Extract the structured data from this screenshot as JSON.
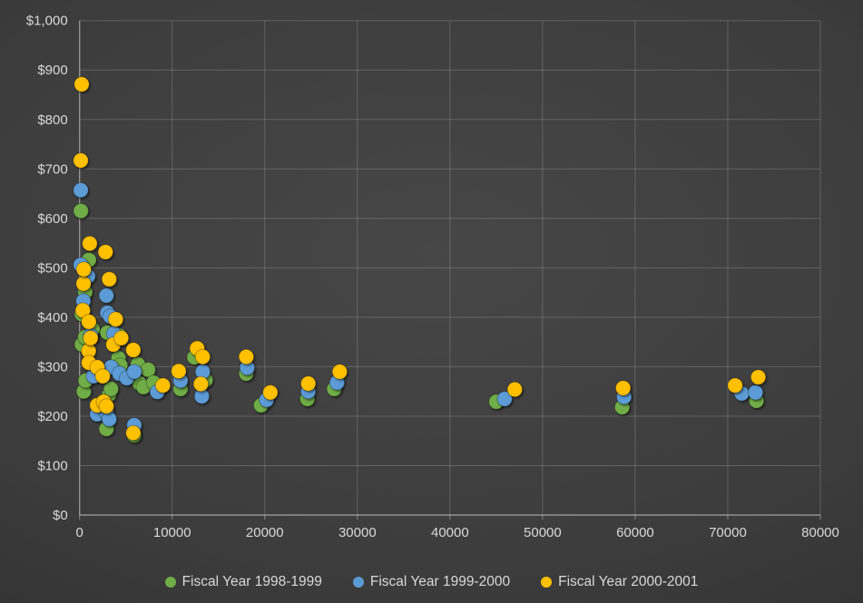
{
  "chart": {
    "y_axis_labels": [
      "$0",
      "$100",
      "$200",
      "$300",
      "$400",
      "$500",
      "$600",
      "$700",
      "$800",
      "$900",
      "$1,000"
    ],
    "x_axis_labels": [
      "0",
      "10000",
      "20000",
      "30000",
      "40000",
      "50000",
      "60000",
      "70000",
      "80000"
    ],
    "text_color": "#D9D9D9",
    "background_color": "#3C3C3C"
  },
  "chart_data": {
    "type": "scatter",
    "title": "",
    "xlabel": "",
    "ylabel": "",
    "xlim": [
      0,
      80000
    ],
    "ylim": [
      0,
      1000
    ],
    "x_ticks": [
      0,
      10000,
      20000,
      30000,
      40000,
      50000,
      60000,
      70000,
      80000
    ],
    "y_ticks": [
      0,
      100,
      200,
      300,
      400,
      500,
      600,
      700,
      800,
      900,
      1000
    ],
    "grid": true,
    "legend_position": "bottom",
    "series": [
      {
        "name": "Fiscal Year 1998-1999",
        "color": "#70AD47",
        "points": [
          [
            150,
            615
          ],
          [
            250,
            406
          ],
          [
            250,
            345
          ],
          [
            450,
            250
          ],
          [
            600,
            451
          ],
          [
            600,
            360
          ],
          [
            650,
            272
          ],
          [
            1000,
            516
          ],
          [
            1400,
            376
          ],
          [
            2900,
            174
          ],
          [
            3000,
            369
          ],
          [
            3200,
            244
          ],
          [
            3400,
            255
          ],
          [
            3900,
            358
          ],
          [
            4200,
            317
          ],
          [
            4300,
            363
          ],
          [
            4400,
            303
          ],
          [
            5900,
            161
          ],
          [
            6300,
            305
          ],
          [
            6500,
            266
          ],
          [
            6900,
            259
          ],
          [
            7400,
            294
          ],
          [
            8000,
            268
          ],
          [
            10900,
            255
          ],
          [
            12400,
            319
          ],
          [
            13600,
            273
          ],
          [
            18000,
            286
          ],
          [
            19600,
            222
          ],
          [
            24600,
            235
          ],
          [
            27500,
            255
          ],
          [
            45000,
            229
          ],
          [
            58600,
            218
          ],
          [
            73100,
            231
          ]
        ]
      },
      {
        "name": "Fiscal Year 1999-2000",
        "color": "#5B9BD5",
        "points": [
          [
            130,
            657
          ],
          [
            130,
            506
          ],
          [
            400,
            433
          ],
          [
            900,
            483
          ],
          [
            1200,
            363
          ],
          [
            1500,
            281
          ],
          [
            1900,
            204
          ],
          [
            2900,
            444
          ],
          [
            2900,
            207
          ],
          [
            3000,
            409
          ],
          [
            3200,
            194
          ],
          [
            3300,
            402
          ],
          [
            3400,
            299
          ],
          [
            3700,
            367
          ],
          [
            4300,
            286
          ],
          [
            5100,
            277
          ],
          [
            5900,
            290
          ],
          [
            5900,
            182
          ],
          [
            8400,
            249
          ],
          [
            10900,
            272
          ],
          [
            13200,
            240
          ],
          [
            13300,
            290
          ],
          [
            18100,
            298
          ],
          [
            20200,
            233
          ],
          [
            24700,
            250
          ],
          [
            27800,
            268
          ],
          [
            45900,
            235
          ],
          [
            58800,
            239
          ],
          [
            71500,
            246
          ],
          [
            73000,
            248
          ]
        ]
      },
      {
        "name": "Fiscal Year 2000-2001",
        "color": "#FFC000",
        "points": [
          [
            130,
            717
          ],
          [
            225,
            871
          ],
          [
            350,
            414
          ],
          [
            420,
            468
          ],
          [
            450,
            497
          ],
          [
            980,
            332
          ],
          [
            1000,
            308
          ],
          [
            1000,
            391
          ],
          [
            1100,
            549
          ],
          [
            1200,
            358
          ],
          [
            1900,
            222
          ],
          [
            1900,
            299
          ],
          [
            2500,
            281
          ],
          [
            2600,
            229
          ],
          [
            2800,
            532
          ],
          [
            2900,
            220
          ],
          [
            3200,
            477
          ],
          [
            3650,
            345
          ],
          [
            3900,
            396
          ],
          [
            4500,
            358
          ],
          [
            5800,
            334
          ],
          [
            5800,
            166
          ],
          [
            9000,
            262
          ],
          [
            10700,
            291
          ],
          [
            12700,
            337
          ],
          [
            13100,
            265
          ],
          [
            13300,
            320
          ],
          [
            18000,
            320
          ],
          [
            20600,
            248
          ],
          [
            24700,
            266
          ],
          [
            28100,
            290
          ],
          [
            47000,
            254
          ],
          [
            58700,
            257
          ],
          [
            70800,
            262
          ],
          [
            73300,
            279
          ]
        ]
      }
    ]
  }
}
